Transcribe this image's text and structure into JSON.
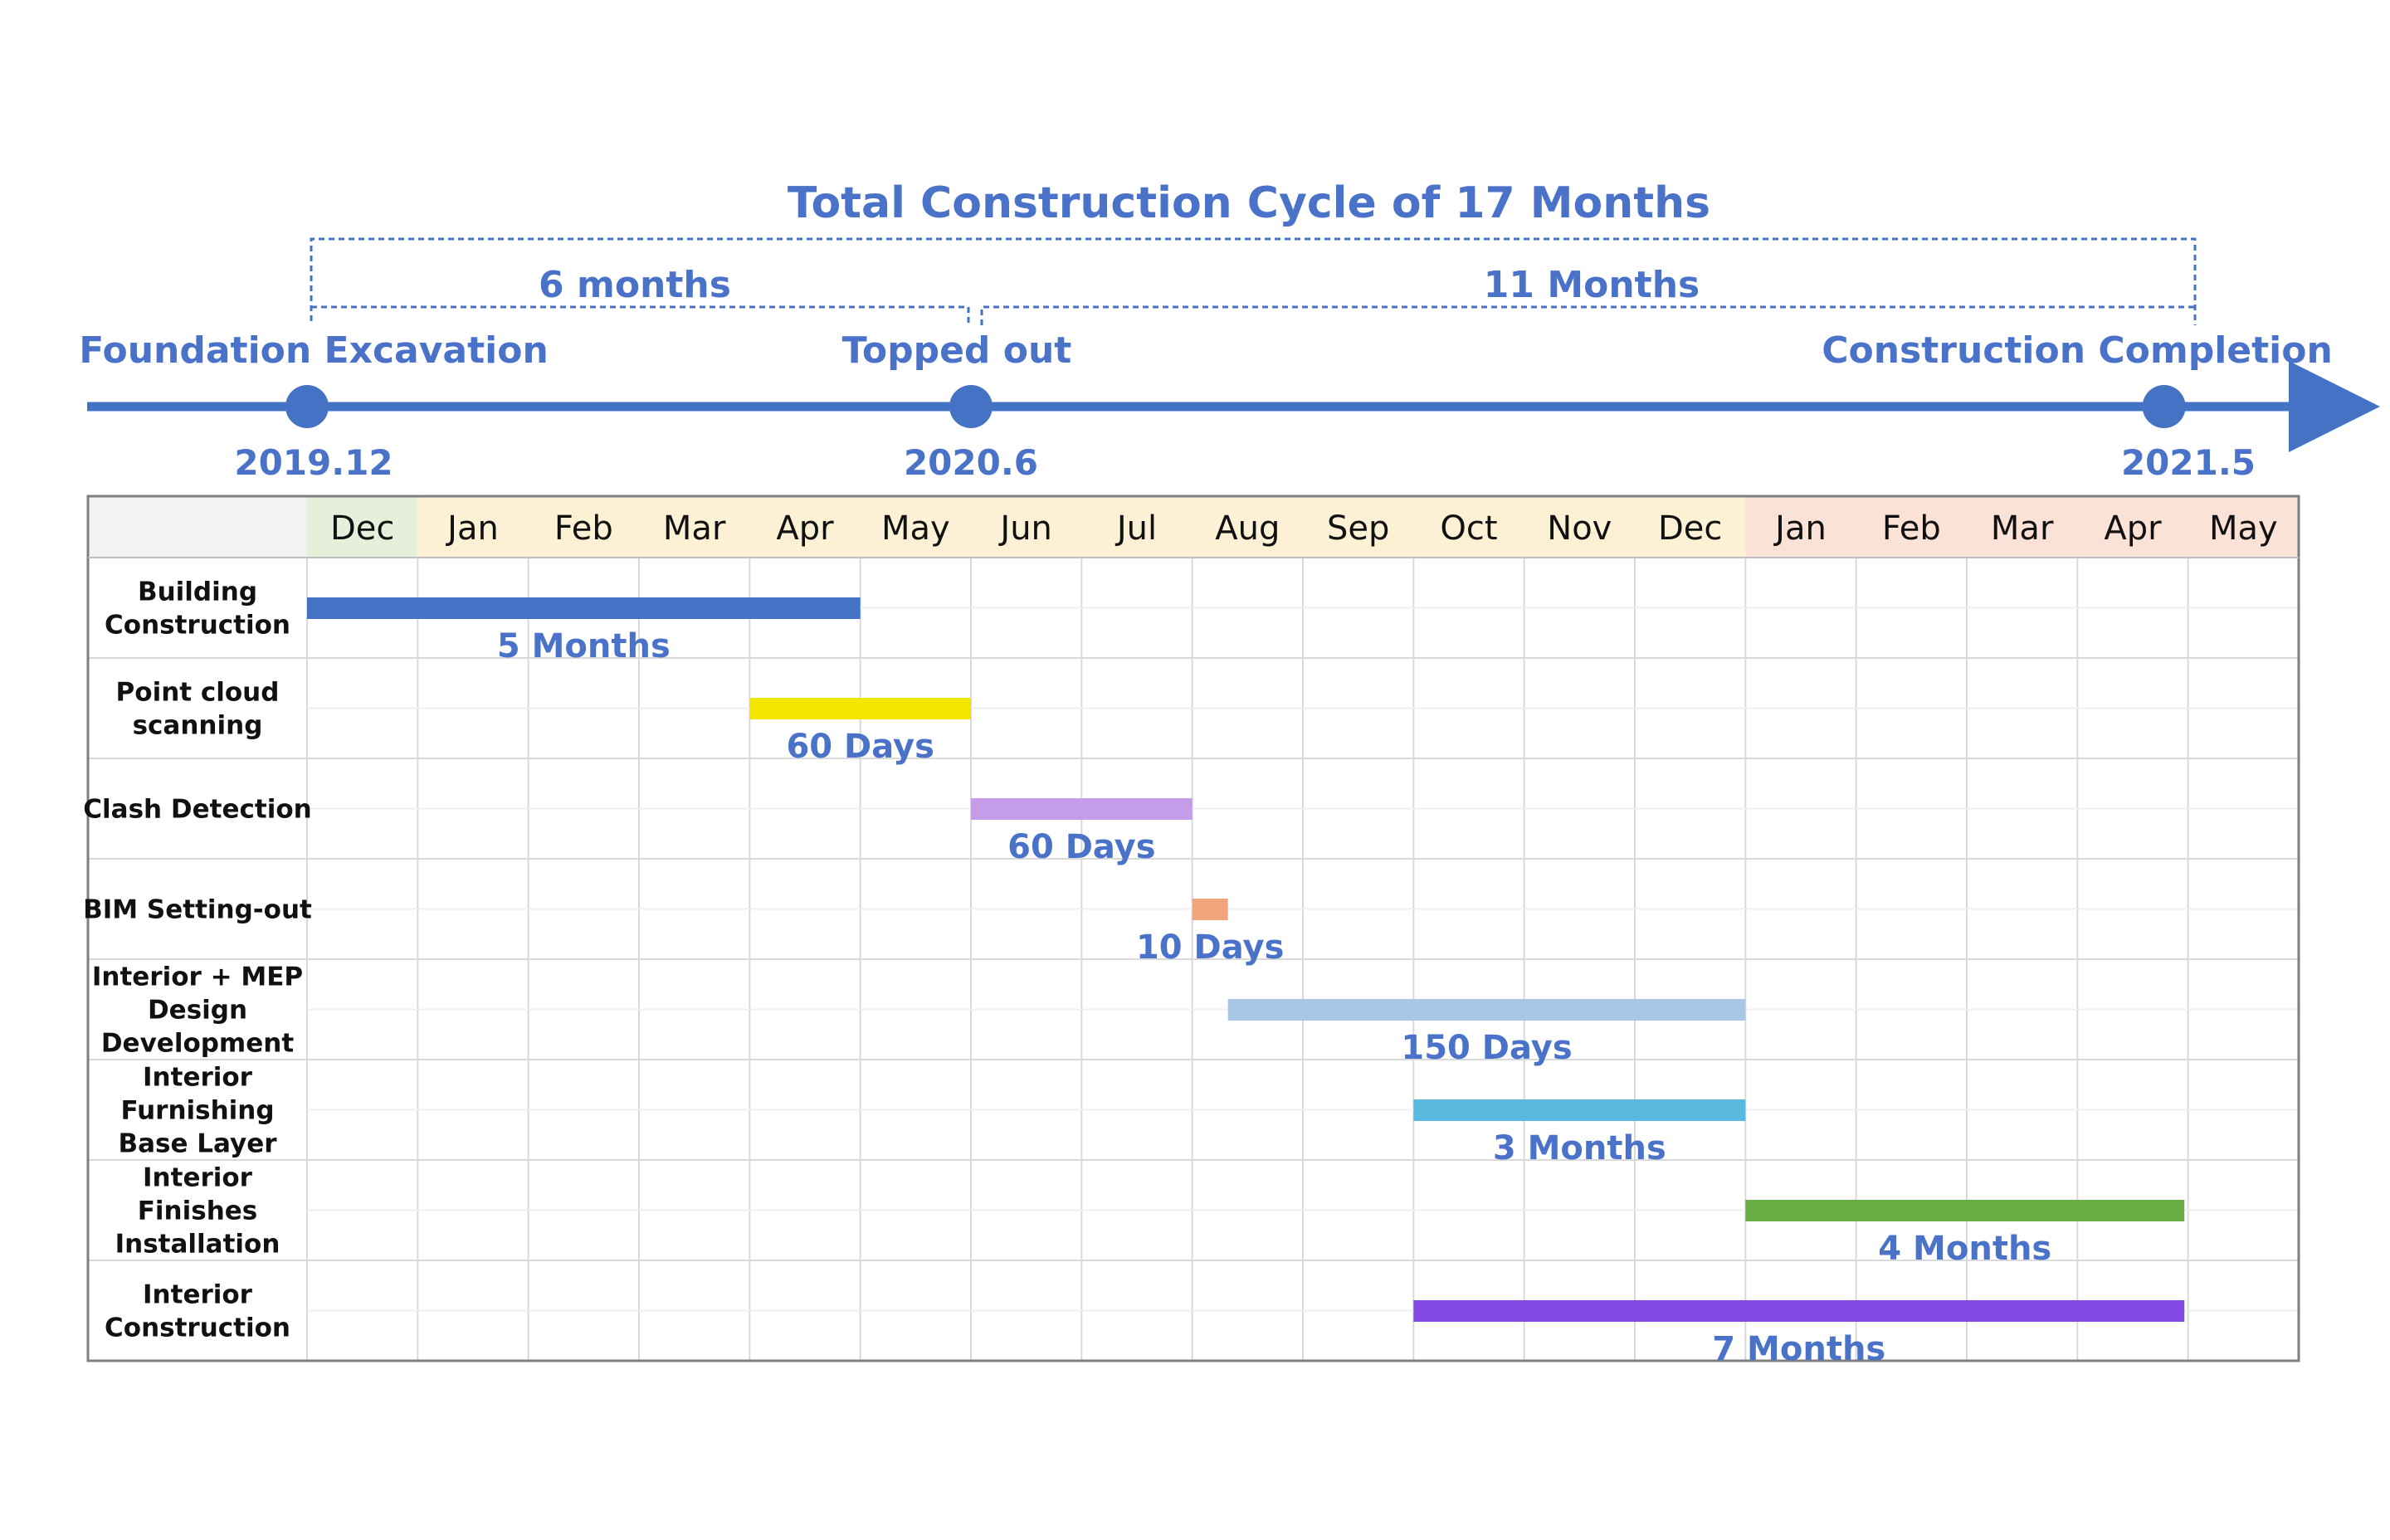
{
  "chart_data": {
    "type": "gantt",
    "title": "Total Construction Cycle of 17 Months",
    "spans": [
      {
        "label": "6 months",
        "from": "2019-12",
        "to": "2020-06"
      },
      {
        "label": "11 Months",
        "from": "2020-06",
        "to": "2021-05"
      }
    ],
    "milestones": [
      {
        "name": "Foundation Excavation",
        "date_label": "2019.12",
        "date": "2019-12"
      },
      {
        "name": "Topped out",
        "date_label": "2020.6",
        "date": "2020-06"
      },
      {
        "name": "Construction Completion",
        "date_label": "2021.5",
        "date": "2021-05"
      }
    ],
    "months": [
      "Dec",
      "Jan",
      "Feb",
      "Mar",
      "Apr",
      "May",
      "Jun",
      "Jul",
      "Aug",
      "Sep",
      "Oct",
      "Nov",
      "Dec",
      "Jan",
      "Feb",
      "Mar",
      "Apr",
      "May"
    ],
    "month_colors": [
      "#e5efd9",
      "#fdf1d5",
      "#fdf1d5",
      "#fdf1d5",
      "#fdf1d5",
      "#fdf1d5",
      "#fdf1d5",
      "#fdf1d5",
      "#fdf1d5",
      "#fdf1d5",
      "#fdf1d5",
      "#fdf1d5",
      "#fdf1d5",
      "#fbe2d7",
      "#fbe2d7",
      "#fbe2d7",
      "#fbe2d7",
      "#fbe2d7"
    ],
    "tasks": [
      {
        "name": [
          "Building",
          "Construction"
        ],
        "start": "2019-12-01",
        "end": "2020-05-01",
        "duration": "5  Months",
        "color": "#4472c4"
      },
      {
        "name": [
          "Point cloud",
          "scanning"
        ],
        "start": "2020-04-01",
        "end": "2020-06-01",
        "duration": "60 Days",
        "color": "#f2e600"
      },
      {
        "name": [
          "Clash Detection"
        ],
        "start": "2020-06-01",
        "end": "2020-08-01",
        "duration": "60 Days",
        "color": "#c59ce8"
      },
      {
        "name": [
          "BIM Setting-out"
        ],
        "start": "2020-08-01",
        "end": "2020-08-11",
        "duration": "10 Days",
        "color": "#f3a47c"
      },
      {
        "name": [
          "Interior + MEP",
          "Design",
          "Development"
        ],
        "start": "2020-08-11",
        "end": "2021-01-01",
        "duration": "150 Days",
        "color": "#a8c6e6"
      },
      {
        "name": [
          "Interior",
          "Furnishing",
          "Base Layer"
        ],
        "start": "2020-10-01",
        "end": "2021-01-01",
        "duration": "3 Months",
        "color": "#5ab9de"
      },
      {
        "name": [
          "Interior",
          "Finishes",
          "Installation"
        ],
        "start": "2021-01-01",
        "end": "2021-04-30",
        "duration": "4 Months",
        "color": "#6aad45"
      },
      {
        "name": [
          "Interior",
          "Construction"
        ],
        "start": "2020-10-01",
        "end": "2021-04-30",
        "duration": "7 Months",
        "color": "#8549e6"
      }
    ],
    "colors": {
      "accent": "#4472c4",
      "label": "#4a72c8"
    }
  }
}
